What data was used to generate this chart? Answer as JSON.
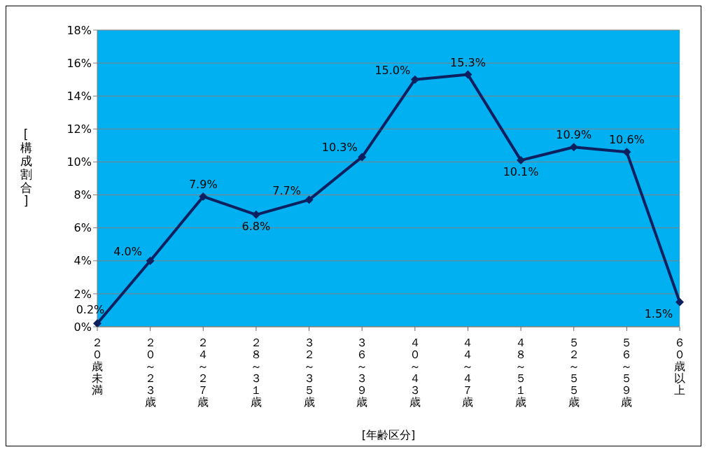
{
  "chart_data": {
    "type": "line",
    "xlabel": "[年齢区分]",
    "ylabel": "[構成割合]",
    "categories": [
      "２０歳未満",
      "２０～２３歳",
      "２４～２７歳",
      "２８～３１歳",
      "３２～３５歳",
      "３６～３９歳",
      "４０～４３歳",
      "４４～４７歳",
      "４８～５１歳",
      "５２～５５歳",
      "５６～５９歳",
      "６０歳以上"
    ],
    "series": [
      {
        "color": "#0c1f5e",
        "values": [
          0.2,
          4.0,
          7.9,
          6.8,
          7.7,
          10.3,
          15.0,
          15.3,
          10.1,
          10.9,
          10.6,
          1.5
        ],
        "value_labels": [
          "0.2%",
          "4.0%",
          "7.9%",
          "6.8%",
          "7.7%",
          "10.3%",
          "15.0%",
          "15.3%",
          "10.1%",
          "10.9%",
          "10.6%",
          "1.5%"
        ]
      }
    ],
    "ylim": [
      0,
      18
    ],
    "yticks": [
      {
        "value": 0,
        "label": "0%"
      },
      {
        "value": 2,
        "label": "2%"
      },
      {
        "value": 4,
        "label": "4%"
      },
      {
        "value": 6,
        "label": "6%"
      },
      {
        "value": 8,
        "label": "8%"
      },
      {
        "value": 10,
        "label": "10%"
      },
      {
        "value": 12,
        "label": "12%"
      },
      {
        "value": 14,
        "label": "14%"
      },
      {
        "value": 16,
        "label": "16%"
      },
      {
        "value": 18,
        "label": "18%"
      }
    ],
    "grid": "y",
    "marker": "diamond",
    "line_style": "solid",
    "legend": false
  }
}
